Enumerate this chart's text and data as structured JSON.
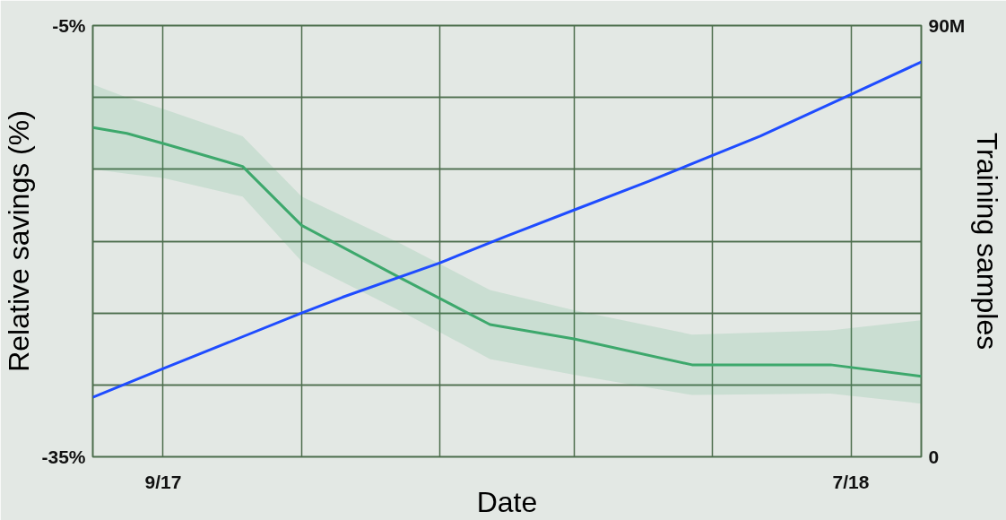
{
  "chart_data": {
    "type": "line",
    "xlabel": "Date",
    "ylabel": "Relative savings (%)",
    "y2label": "Training samples",
    "xlim": [
      "2017-08",
      "2018-08"
    ],
    "xticks": [
      {
        "value": "2017-09",
        "label": "9/17"
      },
      {
        "value": "2017-11",
        "label": null
      },
      {
        "value": "2018-01",
        "label": null
      },
      {
        "value": "2018-03",
        "label": null
      },
      {
        "value": "2018-05",
        "label": null
      },
      {
        "value": "2018-07",
        "label": "7/18"
      }
    ],
    "ylim": [
      -35,
      -5
    ],
    "yticks": [
      {
        "value": -35,
        "label": "-35%"
      },
      {
        "value": -30,
        "label": null
      },
      {
        "value": -25,
        "label": null
      },
      {
        "value": -20,
        "label": null
      },
      {
        "value": -15,
        "label": null
      },
      {
        "value": -10,
        "label": null
      },
      {
        "value": -5,
        "label": "-5%"
      }
    ],
    "y2lim": [
      0,
      90
    ],
    "y2ticks": [
      {
        "value": 0,
        "label": "0"
      },
      {
        "value": 15,
        "label": null
      },
      {
        "value": 30,
        "label": null
      },
      {
        "value": 45,
        "label": null
      },
      {
        "value": 60,
        "label": null
      },
      {
        "value": 75,
        "label": null
      },
      {
        "value": 90,
        "label": "90M"
      }
    ],
    "grid": true,
    "series": [
      {
        "color": "#3da86c",
        "x": [
          "2017-08-01",
          "2017-08-16",
          "2017-09-01",
          "2017-10-06",
          "2017-11-01",
          "2017-12-15",
          "2018-01-23",
          "2018-03-01",
          "2018-04-22",
          "2018-06-22",
          "2018-08-01"
        ],
        "values": [
          -12.1,
          -12.5,
          -13.2,
          -14.8,
          -18.9,
          -22.6,
          -25.8,
          -26.8,
          -28.6,
          -28.6,
          -29.4
        ],
        "lower": [
          -15.0,
          -15.3,
          -15.6,
          -16.9,
          -21.4,
          -24.9,
          -28.2,
          -29.3,
          -30.7,
          -30.6,
          -31.3
        ],
        "upper": [
          -9.1,
          -10.0,
          -10.8,
          -12.7,
          -16.9,
          -20.2,
          -23.4,
          -24.8,
          -26.5,
          -26.2,
          -25.5
        ]
      },
      {
        "color": "#1f4cff",
        "axis": "y2",
        "x": [
          "2017-08-01",
          "2017-09-01",
          "2017-11-01",
          "2017-11-19",
          "2018-01-01",
          "2018-01-30",
          "2018-03-01",
          "2018-04-03",
          "2018-05-01",
          "2018-05-22",
          "2018-07-01",
          "2018-08-01"
        ],
        "values": [
          12.4,
          18.4,
          30.0,
          33.3,
          40.5,
          46.0,
          51.5,
          57.5,
          62.9,
          66.9,
          75.6,
          82.4
        ]
      }
    ]
  }
}
